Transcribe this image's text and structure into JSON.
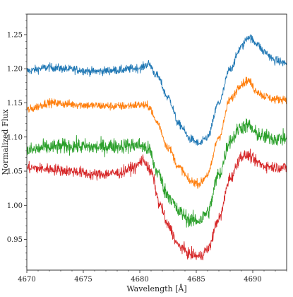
{
  "chart_data": {
    "type": "line",
    "title": "",
    "xlabel": "Wavelength [Å]",
    "ylabel": "Normalized Flux",
    "xlim": [
      4670,
      4693
    ],
    "ylim": [
      0.905,
      1.28
    ],
    "grid": false,
    "legend": "none",
    "x_ticks": [
      4670,
      4675,
      4680,
      4685,
      4690
    ],
    "x_tick_labels": [
      "4670",
      "4675",
      "4680",
      "4685",
      "4690"
    ],
    "y_ticks": [
      0.95,
      1.0,
      1.05,
      1.1,
      1.15,
      1.2,
      1.25
    ],
    "y_tick_labels": [
      "0.95",
      "1.00",
      "1.05",
      "1.10",
      "1.15",
      "1.20",
      "1.25"
    ],
    "series": [
      {
        "color": "#1f77b4",
        "noise": 0.006,
        "x": [
          4670,
          4672,
          4674,
          4676,
          4678,
          4680,
          4680.8,
          4681.5,
          4682.5,
          4683.5,
          4684.5,
          4685.3,
          4686,
          4687,
          4688,
          4689,
          4689.6,
          4690.3,
          4691,
          4692,
          4693
        ],
        "y": [
          1.197,
          1.202,
          1.199,
          1.196,
          1.198,
          1.201,
          1.207,
          1.19,
          1.158,
          1.118,
          1.097,
          1.09,
          1.1,
          1.15,
          1.2,
          1.232,
          1.247,
          1.238,
          1.225,
          1.212,
          1.208
        ]
      },
      {
        "color": "#ff7f0e",
        "noise": 0.006,
        "x": [
          4670,
          4672,
          4674,
          4676,
          4678,
          4680,
          4680.8,
          4681.5,
          4682.5,
          4683.5,
          4684.5,
          4685.3,
          4686,
          4687,
          4688,
          4689,
          4689.6,
          4690.3,
          4691,
          4692,
          4693
        ],
        "y": [
          1.14,
          1.15,
          1.148,
          1.146,
          1.145,
          1.147,
          1.145,
          1.122,
          1.085,
          1.055,
          1.035,
          1.032,
          1.045,
          1.1,
          1.155,
          1.178,
          1.183,
          1.168,
          1.16,
          1.155,
          1.156
        ]
      },
      {
        "color": "#2ca02c",
        "noise": 0.011,
        "x": [
          4670,
          4672,
          4674,
          4676,
          4678,
          4680,
          4680.8,
          4681.5,
          4682.5,
          4683.5,
          4684.5,
          4685.3,
          4686,
          4687,
          4688,
          4689,
          4689.6,
          4690.3,
          4691,
          4692,
          4693
        ],
        "y": [
          1.08,
          1.085,
          1.087,
          1.085,
          1.087,
          1.088,
          1.082,
          1.05,
          1.015,
          0.99,
          0.978,
          0.978,
          0.99,
          1.045,
          1.095,
          1.115,
          1.117,
          1.105,
          1.1,
          1.098,
          1.098
        ]
      },
      {
        "color": "#d62728",
        "noise": 0.008,
        "x": [
          4670,
          4672,
          4674,
          4676,
          4678,
          4679.5,
          4680.3,
          4681,
          4681.8,
          4682.5,
          4683.5,
          4684.5,
          4685.3,
          4686,
          4687,
          4688,
          4689,
          4689.6,
          4690.3,
          4691,
          4692,
          4693
        ],
        "y": [
          1.055,
          1.053,
          1.05,
          1.045,
          1.047,
          1.055,
          1.067,
          1.048,
          1.0,
          0.97,
          0.94,
          0.928,
          0.925,
          0.935,
          0.98,
          1.04,
          1.072,
          1.073,
          1.064,
          1.058,
          1.056,
          1.055
        ]
      }
    ]
  }
}
